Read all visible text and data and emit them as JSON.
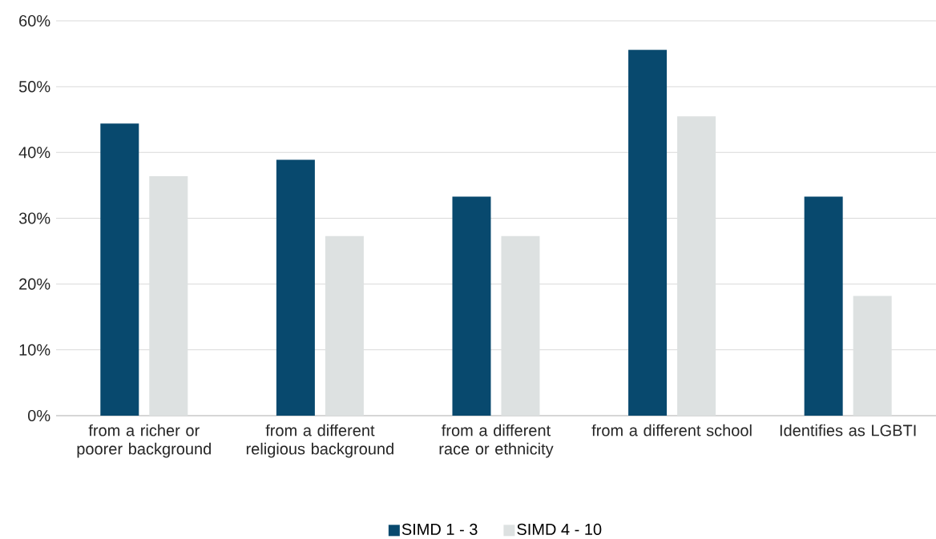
{
  "chart_data": {
    "type": "bar",
    "categories": [
      "from a richer or poorer background",
      "from a different religious background",
      "from a different race or ethnicity",
      "from a different school",
      "Identifies as LGBTI"
    ],
    "series": [
      {
        "name": "SIMD 1 - 3",
        "color": "#08496e",
        "values": [
          44.4,
          38.9,
          33.3,
          55.6,
          33.3
        ]
      },
      {
        "name": "SIMD 4 - 10",
        "color": "#dde1e1",
        "values": [
          36.4,
          27.3,
          27.3,
          45.5,
          18.2
        ]
      }
    ],
    "ylim": [
      0,
      60
    ],
    "yticks": [
      {
        "value": 0,
        "label": "0%"
      },
      {
        "value": 10,
        "label": "10%"
      },
      {
        "value": 20,
        "label": "20%"
      },
      {
        "value": 30,
        "label": "30%"
      },
      {
        "value": 40,
        "label": "40%"
      },
      {
        "value": 50,
        "label": "50%"
      },
      {
        "value": 60,
        "label": "60%"
      }
    ],
    "grid": "y",
    "legend": "bottom"
  }
}
